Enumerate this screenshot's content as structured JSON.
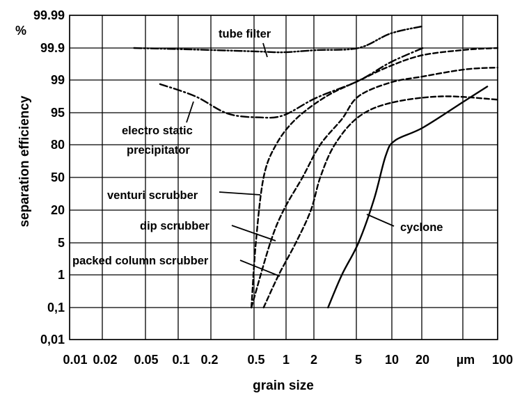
{
  "chart_data": {
    "type": "line",
    "xlabel": "grain size",
    "ylabel": "separation efficiency",
    "y_unit": "%",
    "x_unit": "µm",
    "x_scale": "log",
    "y_scale": "probability",
    "xlim": [
      0.01,
      100
    ],
    "ylim": [
      "0,01",
      "99.99"
    ],
    "grid": true,
    "x_ticks": [
      "0.01",
      "0.02",
      "0.05",
      "0.1",
      "0.2",
      "0.5",
      "1",
      "2",
      "5",
      "10",
      "20",
      "µm",
      "100"
    ],
    "y_ticks": [
      "99.99",
      "99.9",
      "99",
      "95",
      "80",
      "50",
      "20",
      "5",
      "1",
      "0,1",
      "0,01"
    ],
    "series": [
      {
        "name": "tube filter",
        "style": "dash-dot-dot",
        "points": [
          [
            0.04,
            99.9
          ],
          [
            0.1,
            99.87
          ],
          [
            0.3,
            99.83
          ],
          [
            0.6,
            99.8
          ],
          [
            1.0,
            99.78
          ],
          [
            2.0,
            99.84
          ],
          [
            5.0,
            99.9
          ],
          [
            10.0,
            99.94
          ],
          [
            20.0,
            99.96
          ]
        ]
      },
      {
        "name": "electro static precipitator",
        "style": "dash-dot",
        "points": [
          [
            0.07,
            98.5
          ],
          [
            0.15,
            97.0
          ],
          [
            0.3,
            94.6
          ],
          [
            0.6,
            92.8
          ],
          [
            1.0,
            93.8
          ],
          [
            2.0,
            96.8
          ],
          [
            5.0,
            98.9
          ],
          [
            10.0,
            99.5
          ],
          [
            20.0,
            99.9
          ]
        ]
      },
      {
        "name": "venturi scrubber",
        "style": "dashed",
        "points": [
          [
            0.5,
            0.1
          ],
          [
            0.55,
            5
          ],
          [
            0.65,
            50
          ],
          [
            0.85,
            80
          ],
          [
            1.3,
            92
          ],
          [
            2.5,
            97
          ],
          [
            5.0,
            98.9
          ],
          [
            10.0,
            99.4
          ],
          [
            20.0,
            99.7
          ],
          [
            50.0,
            99.85
          ],
          [
            100.0,
            99.9
          ]
        ]
      },
      {
        "name": "dip scrubber",
        "style": "dashed",
        "points": [
          [
            0.5,
            0.1
          ],
          [
            0.75,
            5
          ],
          [
            1.0,
            20
          ],
          [
            1.5,
            50
          ],
          [
            2.2,
            80
          ],
          [
            3.5,
            92
          ],
          [
            5.0,
            97
          ],
          [
            10.0,
            98.7
          ],
          [
            20.0,
            99.1
          ],
          [
            50.0,
            99.3
          ],
          [
            100.0,
            99.35
          ]
        ]
      },
      {
        "name": "packed column scrubber",
        "style": "dashed",
        "points": [
          [
            0.65,
            0.1
          ],
          [
            0.9,
            1
          ],
          [
            1.3,
            5
          ],
          [
            1.8,
            20
          ],
          [
            2.2,
            50
          ],
          [
            3.0,
            80
          ],
          [
            5.0,
            93
          ],
          [
            10.0,
            96.2
          ],
          [
            30.0,
            97.0
          ],
          [
            100.0,
            96.6
          ]
        ]
      },
      {
        "name": "cyclone",
        "style": "solid",
        "points": [
          [
            2.6,
            0.1
          ],
          [
            3.5,
            1
          ],
          [
            5.0,
            5
          ],
          [
            7.0,
            30
          ],
          [
            9.0,
            70
          ],
          [
            11.0,
            82
          ],
          [
            20.0,
            88
          ],
          [
            50.0,
            96.5
          ],
          [
            80.0,
            98.2
          ]
        ]
      }
    ],
    "annotations": [
      "tube filter",
      "electro static",
      "precipitator",
      "venturi scrubber",
      "dip scrubber",
      "packed column scrubber",
      "cyclone"
    ]
  }
}
